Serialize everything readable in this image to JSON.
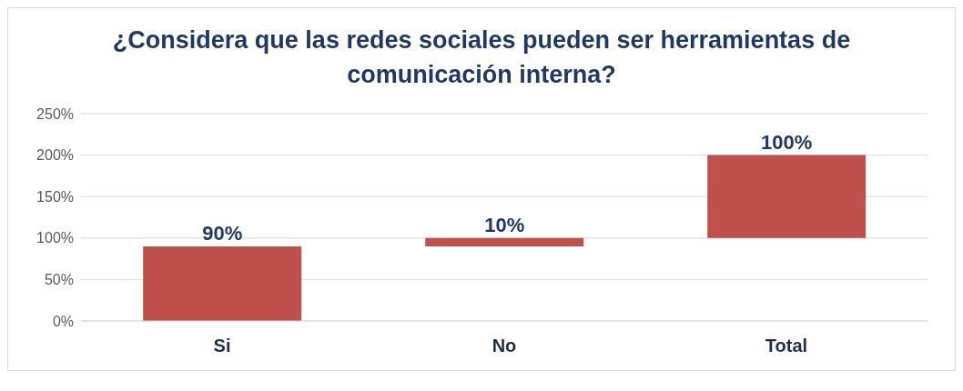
{
  "chart_data": {
    "type": "bar",
    "title": "¿Considera que las redes sociales pueden ser herramientas de comunicación interna?",
    "categories": [
      "Si",
      "No",
      "Total"
    ],
    "values": [
      90,
      10,
      100
    ],
    "base": [
      0,
      90,
      100
    ],
    "value_labels": [
      "90%",
      "10%",
      "100%"
    ],
    "color": "#c0504d",
    "ylim": [
      0,
      250
    ],
    "yticks": [
      {
        "value": 0,
        "label": "0%"
      },
      {
        "value": 50,
        "label": "50%"
      },
      {
        "value": 100,
        "label": "100%"
      },
      {
        "value": 150,
        "label": "150%"
      },
      {
        "value": 200,
        "label": "200%"
      },
      {
        "value": 250,
        "label": "250%"
      }
    ],
    "grid": "y",
    "legend": false
  }
}
